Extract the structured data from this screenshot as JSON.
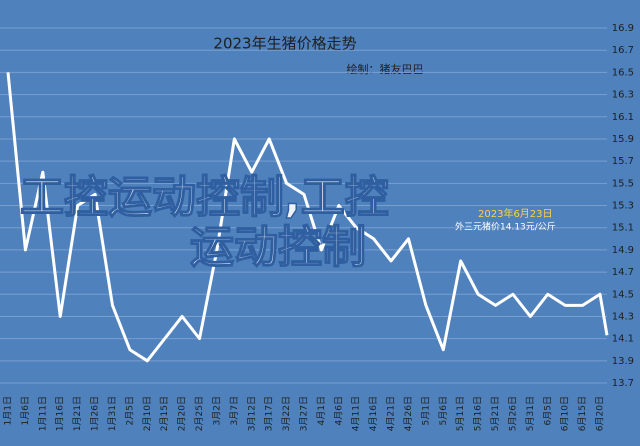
{
  "chart_data": {
    "type": "line",
    "title": "2023年生猪价格走势",
    "subtitle": "绘制：猪友巴巴",
    "annotations": [
      "2023年6月23日",
      "外三元猪价14.13元/公斤"
    ],
    "watermark": [
      "工控运动控制,工控",
      "运动控制"
    ],
    "categories": [
      "1月1日",
      "1月6日",
      "1月11日",
      "1月16日",
      "1月21日",
      "1月26日",
      "1月31日",
      "2月5日",
      "2月10日",
      "2月15日",
      "2月20日",
      "2月25日",
      "3月2日",
      "3月7日",
      "3月12日",
      "3月17日",
      "3月22日",
      "3月27日",
      "4月1日",
      "4月6日",
      "4月11日",
      "4月16日",
      "4月21日",
      "4月26日",
      "5月1日",
      "5月6日",
      "5月11日",
      "5月16日",
      "5月21日",
      "5月26日",
      "5月31日",
      "6月5日",
      "6月10日",
      "6月15日",
      "6月20日",
      null
    ],
    "series": [
      {
        "name": "生猪价格",
        "color": "#ffffff",
        "values": [
          16.5,
          14.9,
          15.6,
          14.3,
          15.3,
          15.4,
          14.4,
          14.0,
          13.9,
          14.1,
          14.3,
          14.1,
          14.9,
          15.9,
          15.6,
          15.9,
          15.5,
          15.4,
          14.9,
          15.3,
          15.1,
          15.0,
          14.8,
          15.0,
          14.4,
          14.0,
          14.8,
          14.5,
          14.4,
          14.5,
          14.3,
          14.5,
          14.4,
          14.4,
          14.5,
          14.13
        ]
      }
    ],
    "ylim": [
      13.7,
      16.9
    ],
    "yticks": [
      {
        "value": 13.7,
        "label": "13.7"
      },
      {
        "value": 13.9,
        "label": "13.9"
      },
      {
        "value": 14.1,
        "label": "14.1"
      },
      {
        "value": 14.3,
        "label": "14.3"
      },
      {
        "value": 14.5,
        "label": "14.5"
      },
      {
        "value": 14.7,
        "label": "14.7"
      },
      {
        "value": 14.9,
        "label": "14.9"
      },
      {
        "value": 15.1,
        "label": "15.1"
      },
      {
        "value": 15.3,
        "label": "15.3"
      },
      {
        "value": 15.5,
        "label": "15.5"
      },
      {
        "value": 15.7,
        "label": "15.7"
      },
      {
        "value": 15.9,
        "label": "15.9"
      },
      {
        "value": 16.1,
        "label": "16.1"
      },
      {
        "value": 16.3,
        "label": "16.3"
      },
      {
        "value": 16.5,
        "label": "16.5"
      },
      {
        "value": 16.7,
        "label": "16.7"
      },
      {
        "value": 16.9,
        "label": "16.9"
      }
    ],
    "grid": true
  }
}
